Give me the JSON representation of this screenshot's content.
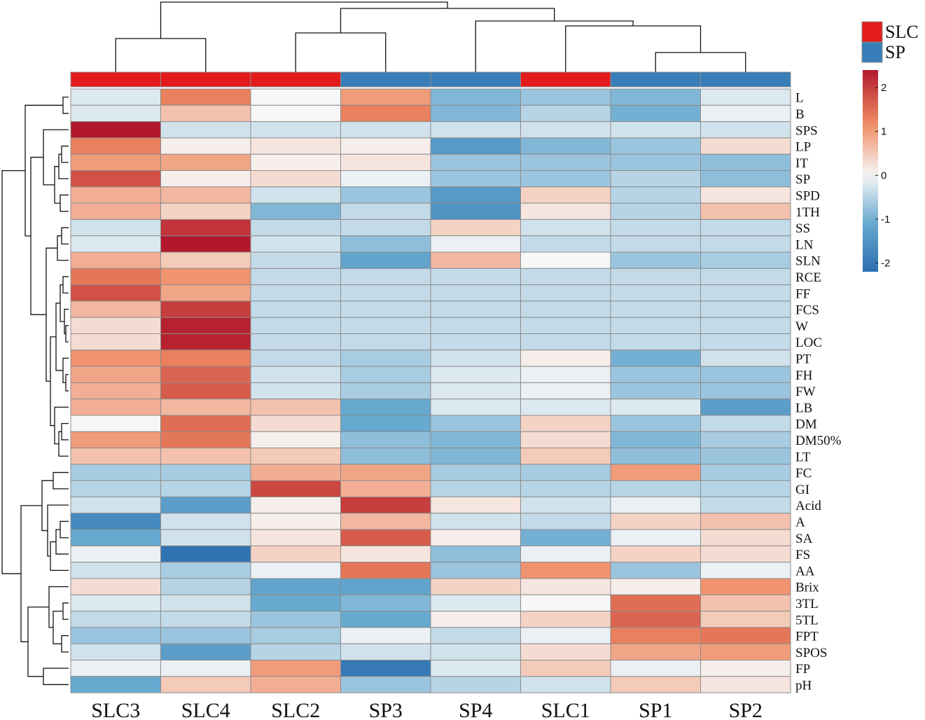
{
  "chart_data": {
    "type": "heatmap",
    "title": "",
    "columns": [
      "SLC3",
      "SLC4",
      "SLC2",
      "SP3",
      "SP4",
      "SLC1",
      "SP1",
      "SP2"
    ],
    "column_groups": [
      "SLC",
      "SLC",
      "SLC",
      "SP",
      "SP",
      "SLC",
      "SP",
      "SP"
    ],
    "rows": [
      "L",
      "B",
      "SPS",
      "LP",
      "IT",
      "SP",
      "SPD",
      "1TH",
      "SS",
      "LN",
      "SLN",
      "RCE",
      "FF",
      "FCS",
      "W",
      "LOC",
      "PT",
      "FH",
      "FW",
      "LB",
      "DM",
      "DM50%",
      "LT",
      "FC",
      "GI",
      "Acid",
      "A",
      "SA",
      "FS",
      "AA",
      "Brix",
      "3TL",
      "5TL",
      "FPT",
      "SPOS",
      "FP",
      "pH"
    ],
    "values": [
      [
        -0.2,
        1.3,
        0.0,
        1.0,
        -0.9,
        -0.7,
        -0.9,
        -0.2
      ],
      [
        -0.2,
        0.6,
        0.0,
        1.3,
        -0.9,
        -0.5,
        -1.0,
        -0.1
      ],
      [
        2.4,
        -0.3,
        -0.3,
        -0.3,
        -0.3,
        -0.3,
        -0.3,
        -0.3
      ],
      [
        1.3,
        0.1,
        0.2,
        0.1,
        -1.4,
        -0.9,
        -0.7,
        0.3
      ],
      [
        1.0,
        0.9,
        0.1,
        0.2,
        -0.7,
        -0.7,
        -0.7,
        -0.8
      ],
      [
        1.8,
        0.1,
        0.3,
        -0.1,
        -0.7,
        -0.7,
        -0.5,
        -0.8
      ],
      [
        0.8,
        0.7,
        -0.3,
        -0.7,
        -1.4,
        0.4,
        -0.5,
        0.2
      ],
      [
        0.8,
        0.4,
        -0.9,
        -0.4,
        -1.5,
        0.2,
        -0.5,
        0.6
      ],
      [
        -0.3,
        2.1,
        -0.4,
        -0.4,
        0.4,
        -0.3,
        -0.4,
        -0.4
      ],
      [
        -0.2,
        2.4,
        -0.3,
        -0.8,
        -0.1,
        -0.4,
        -0.4,
        -0.4
      ],
      [
        0.8,
        0.5,
        -0.4,
        -1.2,
        0.7,
        0.0,
        -0.7,
        -0.6
      ],
      [
        1.4,
        1.1,
        -0.4,
        -0.4,
        -0.4,
        -0.4,
        -0.4,
        -0.4
      ],
      [
        1.8,
        0.9,
        -0.4,
        -0.4,
        -0.4,
        -0.4,
        -0.4,
        -0.4
      ],
      [
        0.7,
        2.0,
        -0.4,
        -0.4,
        -0.4,
        -0.4,
        -0.4,
        -0.4
      ],
      [
        0.3,
        2.3,
        -0.4,
        -0.4,
        -0.4,
        -0.4,
        -0.4,
        -0.4
      ],
      [
        0.3,
        2.3,
        -0.4,
        -0.4,
        -0.4,
        -0.4,
        -0.4,
        -0.4
      ],
      [
        1.1,
        1.3,
        -0.4,
        -0.6,
        -0.3,
        0.1,
        -1.0,
        -0.3
      ],
      [
        0.9,
        1.6,
        -0.3,
        -0.6,
        -0.2,
        -0.1,
        -0.7,
        -0.7
      ],
      [
        0.8,
        1.7,
        -0.3,
        -0.6,
        -0.2,
        -0.1,
        -0.7,
        -0.7
      ],
      [
        0.8,
        0.7,
        0.6,
        -1.1,
        -0.2,
        -0.2,
        -0.2,
        -1.3
      ],
      [
        0.0,
        1.5,
        0.3,
        -1.1,
        -0.7,
        0.4,
        -0.7,
        -0.4
      ],
      [
        1.0,
        1.4,
        0.1,
        -0.8,
        -0.9,
        0.3,
        -0.9,
        -0.6
      ],
      [
        0.6,
        0.6,
        0.5,
        -0.8,
        -0.9,
        0.5,
        -0.8,
        -0.7
      ],
      [
        -0.6,
        -0.6,
        0.8,
        0.9,
        -0.6,
        -0.6,
        1.0,
        -0.6
      ],
      [
        -0.5,
        -0.5,
        1.9,
        0.8,
        -0.5,
        -0.5,
        -0.5,
        -0.5
      ],
      [
        -0.3,
        -1.3,
        0.1,
        2.0,
        0.2,
        -0.3,
        -0.1,
        -0.4
      ],
      [
        -1.7,
        -0.3,
        0.1,
        0.7,
        -0.3,
        -0.4,
        0.4,
        0.6
      ],
      [
        -1.1,
        -0.3,
        0.2,
        1.7,
        0.1,
        -1.0,
        -0.1,
        0.3
      ],
      [
        -0.1,
        -2.1,
        0.4,
        0.2,
        -0.8,
        -0.1,
        0.4,
        0.3
      ],
      [
        -0.3,
        -0.6,
        -0.1,
        1.4,
        -0.7,
        1.1,
        -0.7,
        -0.1
      ],
      [
        0.3,
        -0.5,
        -1.2,
        -1.2,
        0.4,
        0.2,
        0.1,
        1.1
      ],
      [
        -0.2,
        -0.3,
        -1.1,
        -0.9,
        -0.2,
        0.0,
        1.5,
        0.6
      ],
      [
        -0.4,
        -0.4,
        -0.7,
        -1.1,
        0.1,
        0.4,
        1.6,
        0.5
      ],
      [
        -0.7,
        -0.7,
        -0.6,
        -0.1,
        -0.4,
        -0.1,
        1.3,
        1.4
      ],
      [
        -0.3,
        -1.3,
        -0.5,
        -0.3,
        -0.3,
        0.3,
        0.9,
        1.0
      ],
      [
        -0.1,
        -0.1,
        1.0,
        -2.0,
        -0.2,
        0.5,
        -0.1,
        0.1
      ],
      [
        -1.1,
        0.5,
        0.8,
        -0.7,
        -0.5,
        -0.3,
        0.5,
        0.2
      ]
    ],
    "color_scale": {
      "min": -2.2,
      "max": 2.4,
      "low": "#2b6eb0",
      "mid": "#f7f7f7",
      "high": "#b2182b"
    },
    "colorbar_ticks": [
      2,
      1,
      0,
      -1,
      -2
    ],
    "group_legend": [
      {
        "label": "SLC",
        "color": "#e41a1c"
      },
      {
        "label": "SP",
        "color": "#377eb8"
      }
    ]
  }
}
